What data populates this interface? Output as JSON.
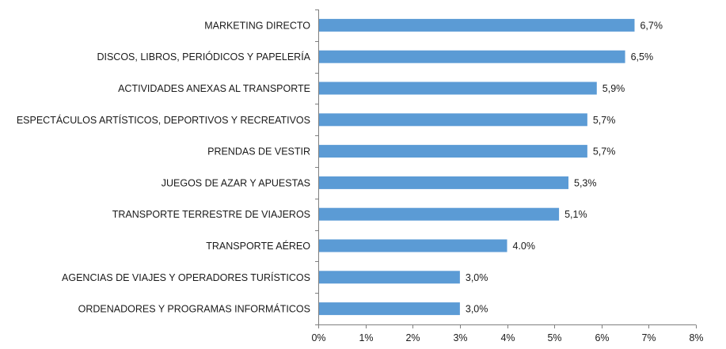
{
  "chart_data": {
    "type": "bar",
    "orientation": "horizontal",
    "categories": [
      "MARKETING DIRECTO",
      "DISCOS, LIBROS, PERIÓDICOS Y PAPELERÍA",
      "ACTIVIDADES ANEXAS AL TRANSPORTE",
      "ESPECTÁCULOS ARTÍSTICOS, DEPORTIVOS Y RECREATIVOS",
      "PRENDAS DE VESTIR",
      "JUEGOS DE AZAR Y APUESTAS",
      "TRANSPORTE TERRESTRE DE VIAJEROS",
      "TRANSPORTE AÉREO",
      "AGENCIAS DE VIAJES Y OPERADORES TURÍSTICOS",
      "ORDENADORES Y PROGRAMAS INFORMÁTICOS"
    ],
    "values": [
      6.7,
      6.5,
      5.9,
      5.7,
      5.7,
      5.3,
      5.1,
      4.0,
      3.0,
      3.0
    ],
    "value_labels": [
      "6,7%",
      "6,5%",
      "5,9%",
      "5,7%",
      "5,7%",
      "5,3%",
      "5,1%",
      "4.0%",
      "3,0%",
      "3,0%"
    ],
    "xlim": [
      0,
      8
    ],
    "x_ticks": [
      "0%",
      "1%",
      "2%",
      "3%",
      "4%",
      "5%",
      "6%",
      "7%",
      "8%"
    ],
    "title": "",
    "xlabel": "",
    "ylabel": "",
    "grid": false,
    "legend": "none",
    "bar_color": "#5b9bd5",
    "axis_color": "#7f7f7f"
  }
}
